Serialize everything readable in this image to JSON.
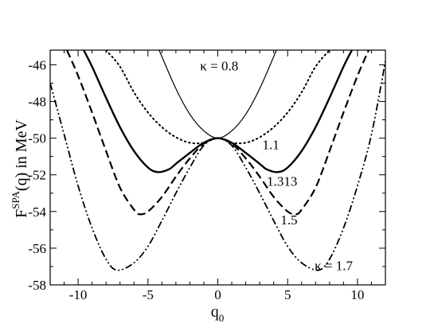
{
  "chart_data": {
    "type": "line",
    "xlabel": {
      "main": "q",
      "sub": "0"
    },
    "ylabel": {
      "prefix": "F",
      "sup": "SPA",
      "rest": "(q) in MeV"
    },
    "xlim": [
      -12,
      12
    ],
    "ylim": [
      -58,
      -45.2
    ],
    "xticks": [
      -10,
      -5,
      0,
      5,
      10
    ],
    "yticks": [
      -58,
      -56,
      -54,
      -52,
      -50,
      -48,
      -46
    ],
    "grid": false,
    "legend": "none",
    "annotations": [
      {
        "text": "κ = 0.8",
        "x": 0.1,
        "y": -46.3
      },
      {
        "text": "1.1",
        "x": 3.8,
        "y": -50.6
      },
      {
        "text": "1.313",
        "x": 4.6,
        "y": -52.6
      },
      {
        "text": "1.5",
        "x": 5.1,
        "y": -54.7
      },
      {
        "text": "κ = 1.7",
        "x": 8.3,
        "y": -57.2
      }
    ],
    "series": [
      {
        "kappa": 0.8,
        "style": "solid-thin",
        "x": [
          -4.2,
          -3,
          -2,
          -1,
          0,
          1,
          2,
          3,
          4.2
        ],
        "y": [
          -45.2,
          -47.3,
          -48.7,
          -49.6,
          -50,
          -49.6,
          -48.7,
          -47.3,
          -45.2
        ]
      },
      {
        "kappa": 1.1,
        "style": "dotted",
        "x": [
          -8,
          -7,
          -6,
          -5,
          -4,
          -3,
          -2,
          -1,
          0,
          1,
          2,
          3,
          4,
          5,
          6,
          7,
          8
        ],
        "y": [
          -45.2,
          -46.1,
          -47.5,
          -48.6,
          -49.4,
          -49.95,
          -50.25,
          -50.25,
          -50,
          -50.25,
          -50.25,
          -49.95,
          -49.4,
          -48.6,
          -47.5,
          -46.1,
          -45.2
        ]
      },
      {
        "kappa": 1.313,
        "style": "solid-thick",
        "x": [
          -9.6,
          -9,
          -8,
          -7,
          -6,
          -5,
          -4.3,
          -3.5,
          -3,
          -2,
          -1,
          0,
          1,
          2,
          3,
          3.5,
          4.3,
          5,
          6,
          7,
          8,
          9,
          9.6
        ],
        "y": [
          -45.2,
          -46.1,
          -47.8,
          -49.4,
          -50.7,
          -51.6,
          -51.85,
          -51.7,
          -51.4,
          -50.8,
          -50.25,
          -50,
          -50.25,
          -50.8,
          -51.4,
          -51.7,
          -51.85,
          -51.6,
          -50.7,
          -49.4,
          -47.8,
          -46.1,
          -45.2
        ]
      },
      {
        "kappa": 1.5,
        "style": "dashed",
        "x": [
          -10.8,
          -10,
          -9,
          -8,
          -7,
          -6,
          -5.6,
          -5,
          -4,
          -3,
          -2,
          -1,
          0,
          1,
          2,
          3,
          4,
          5,
          5.6,
          6,
          7,
          8,
          9,
          10,
          10.8
        ],
        "y": [
          -45.2,
          -46.6,
          -48.6,
          -50.7,
          -52.7,
          -53.9,
          -54.15,
          -54,
          -53.2,
          -52.1,
          -51.1,
          -50.3,
          -50,
          -50.3,
          -51.1,
          -52.1,
          -53.2,
          -54,
          -54.15,
          -53.9,
          -52.7,
          -50.7,
          -48.6,
          -46.6,
          -45.2
        ]
      },
      {
        "kappa": 1.7,
        "style": "dash-dot-dot",
        "x": [
          -12,
          -11,
          -10,
          -9,
          -8,
          -7.2,
          -6,
          -5,
          -4,
          -3,
          -2,
          -1,
          0,
          1,
          2,
          3,
          4,
          5,
          6,
          7.2,
          8,
          9,
          10,
          11,
          12
        ],
        "y": [
          -47,
          -49.8,
          -52.6,
          -54.9,
          -56.6,
          -57.2,
          -56.8,
          -55.9,
          -54.5,
          -53,
          -51.6,
          -50.4,
          -50,
          -50.4,
          -51.6,
          -53,
          -54.5,
          -55.9,
          -56.8,
          -57.2,
          -56.6,
          -54.9,
          -52.6,
          -49.8,
          -45.8
        ]
      }
    ]
  }
}
